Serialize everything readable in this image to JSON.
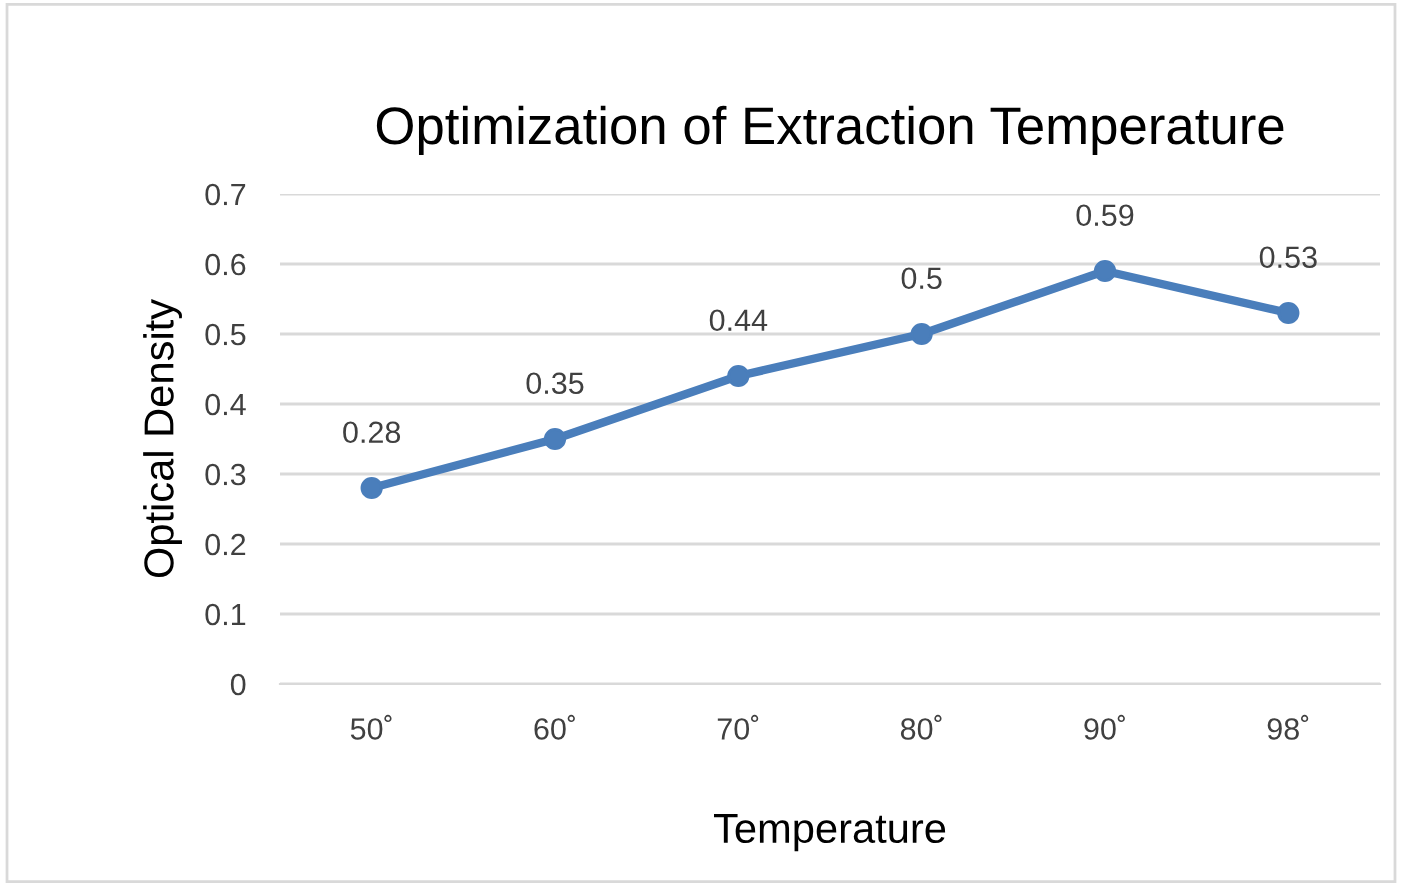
{
  "chart_data": {
    "type": "line",
    "title": "Optimization of Extraction Temperature",
    "xlabel": "Temperature",
    "ylabel": "Optical Density",
    "categories": [
      "50˚",
      "60˚",
      "70˚",
      "80˚",
      "90˚",
      "98˚"
    ],
    "series": [
      {
        "color": "#4a7ebb",
        "values": [
          0.28,
          0.35,
          0.44,
          0.5,
          0.59,
          0.53
        ]
      }
    ],
    "ylim": [
      0,
      0.7
    ],
    "yticks": [
      0,
      0.1,
      0.2,
      0.3,
      0.4,
      0.5,
      0.6,
      0.7
    ],
    "grid": "y",
    "marker": "circle",
    "line_style": "solid",
    "data_labels": true,
    "legend": false
  }
}
